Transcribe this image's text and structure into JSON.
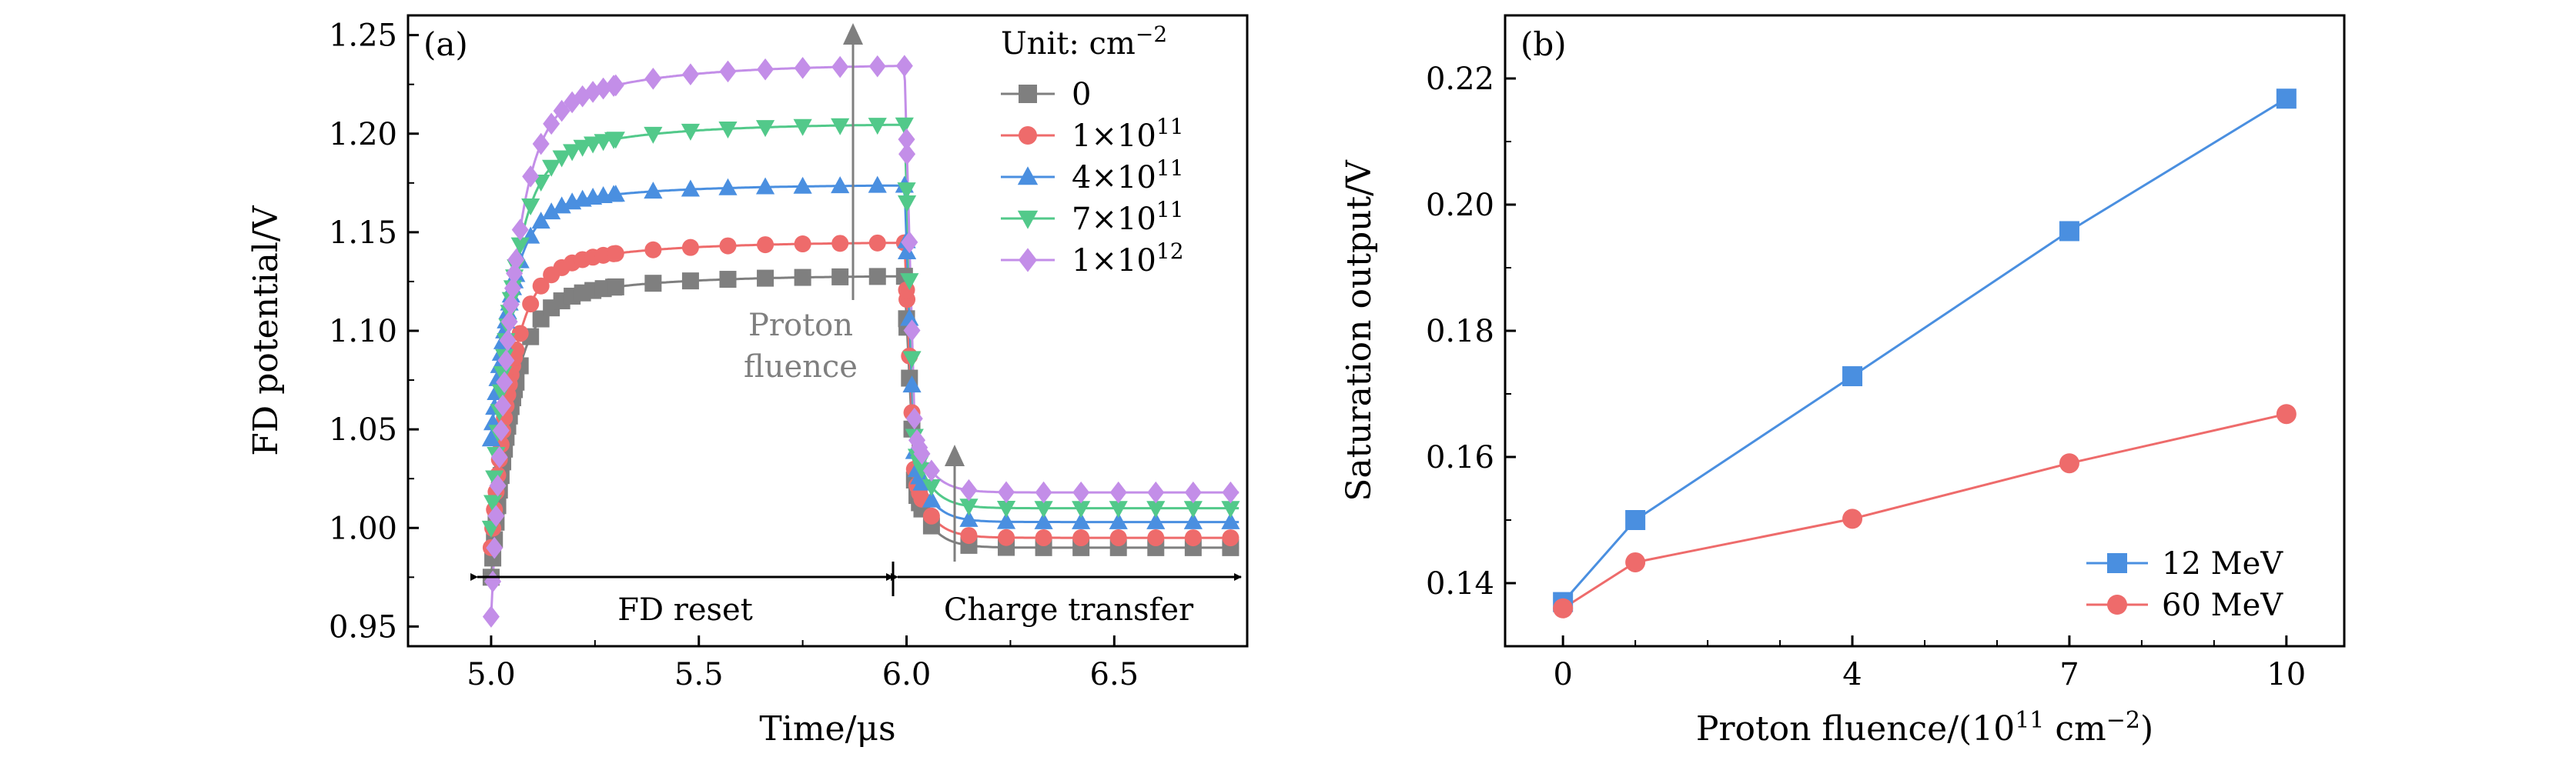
{
  "chart_data": [
    {
      "panel_label": "(a)",
      "type": "line",
      "xlabel": "Time/μs",
      "ylabel": "FD potential/V",
      "xlim": [
        4.8,
        6.82
      ],
      "ylim": [
        0.94,
        1.26
      ],
      "xticks": [
        {
          "v": 5.0,
          "label": "5.0"
        },
        {
          "v": 5.5,
          "label": "5.5"
        },
        {
          "v": 6.0,
          "label": "6.0"
        },
        {
          "v": 6.5,
          "label": "6.5"
        }
      ],
      "yticks": [
        {
          "v": 0.95,
          "label": "0.95"
        },
        {
          "v": 1.0,
          "label": "1.00"
        },
        {
          "v": 1.05,
          "label": "1.05"
        },
        {
          "v": 1.1,
          "label": "1.10"
        },
        {
          "v": 1.15,
          "label": "1.15"
        },
        {
          "v": 1.2,
          "label": "1.20"
        },
        {
          "v": 1.25,
          "label": "1.25"
        }
      ],
      "legend_title": "Unit: cm",
      "legend_title_sup": "−2",
      "legend_position": "top-right",
      "series": [
        {
          "name": "0",
          "marker": "square",
          "color": "#7f7f7f",
          "initial": 0.975,
          "plateau": 1.128,
          "tail": 0.99
        },
        {
          "name": "1×10",
          "sup": "11",
          "marker": "circle",
          "color": "#ee6b6b",
          "initial": 0.99,
          "plateau": 1.145,
          "tail": 0.995
        },
        {
          "name": "4×10",
          "sup": "11",
          "marker": "triangle-up",
          "color": "#4a8fe0",
          "initial": 1.045,
          "plateau": 1.174,
          "tail": 1.003
        },
        {
          "name": "7×10",
          "sup": "11",
          "marker": "triangle-down",
          "color": "#52c98a",
          "initial": 1.0,
          "plateau": 1.205,
          "tail": 1.01
        },
        {
          "name": "1×10",
          "sup": "12",
          "marker": "diamond",
          "color": "#c38ee8",
          "initial": 0.955,
          "plateau": 1.235,
          "tail": 1.018
        }
      ],
      "annotations": {
        "arrow_note": "Proton fluence",
        "arrow_note_lines": [
          "Proton",
          "fluence"
        ],
        "fd_reset": "FD reset",
        "charge_transfer": "Charge transfer"
      }
    },
    {
      "panel_label": "(b)",
      "type": "line",
      "xlabel": "Proton fluence/(10",
      "xlabel_sup": "11",
      "xlabel_tail": " cm",
      "xlabel_tail_sup": "−2",
      "xlabel_close": ")",
      "ylabel": "Saturation output/V",
      "xlim": [
        -0.8,
        10.8
      ],
      "ylim": [
        0.13,
        0.23
      ],
      "xticks": [
        {
          "v": 0,
          "label": "0"
        },
        {
          "v": 4,
          "label": "4"
        },
        {
          "v": 7,
          "label": "7"
        },
        {
          "v": 10,
          "label": "10"
        }
      ],
      "yticks": [
        {
          "v": 0.14,
          "label": "0.14"
        },
        {
          "v": 0.16,
          "label": "0.16"
        },
        {
          "v": 0.18,
          "label": "0.18"
        },
        {
          "v": 0.2,
          "label": "0.20"
        },
        {
          "v": 0.22,
          "label": "0.22"
        }
      ],
      "x": [
        0,
        1,
        4,
        7,
        10
      ],
      "series": [
        {
          "name": "12 MeV",
          "marker": "square",
          "color": "#4a8fe0",
          "values": [
            0.137,
            0.15,
            0.1728,
            0.1958,
            0.2168
          ]
        },
        {
          "name": "60 MeV",
          "marker": "circle",
          "color": "#ee6b6b",
          "values": [
            0.136,
            0.1433,
            0.1502,
            0.159,
            0.1668
          ]
        }
      ],
      "legend_position": "bottom-right"
    }
  ]
}
